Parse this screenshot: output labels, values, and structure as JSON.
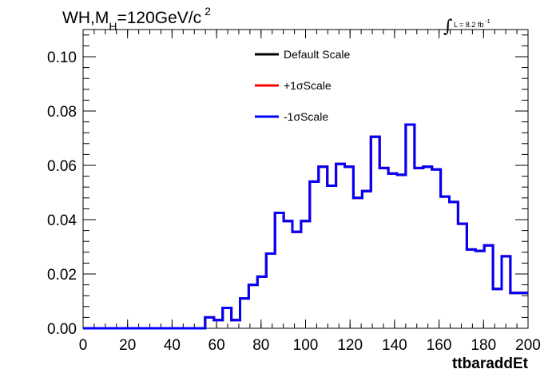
{
  "chart_data": {
    "type": "step-line",
    "title_main": "WH,M",
    "title_sub": "H",
    "title_rest": "=120GeV/c",
    "title_sup": "2",
    "lumi": {
      "symbol": "∫",
      "text": "L = 8.2 fb",
      "sup": "-1"
    },
    "xlabel": "ttbaraddEt",
    "xlim": [
      0,
      200
    ],
    "ylim": [
      0,
      0.11
    ],
    "x_ticks": [
      0,
      20,
      40,
      60,
      80,
      100,
      120,
      140,
      160,
      180,
      200
    ],
    "x_tick_labels": [
      "0",
      "20",
      "40",
      "60",
      "80",
      "100",
      "120",
      "140",
      "160",
      "180",
      "200"
    ],
    "y_ticks": [
      0,
      0.02,
      0.04,
      0.06,
      0.08,
      0.1
    ],
    "y_tick_labels": [
      "0.00",
      "0.02",
      "0.04",
      "0.06",
      "0.08",
      "0.10"
    ],
    "bin_width": 3.92,
    "bin_values": [
      0,
      0,
      0,
      0,
      0,
      0,
      0,
      0,
      0,
      0,
      0,
      0,
      0,
      0,
      0.004,
      0.003,
      0.0075,
      0.003,
      0.011,
      0.016,
      0.019,
      0.0275,
      0.0425,
      0.0395,
      0.0355,
      0.0395,
      0.054,
      0.0595,
      0.0525,
      0.0605,
      0.0595,
      0.048,
      0.0505,
      0.0705,
      0.059,
      0.057,
      0.0565,
      0.075,
      0.059,
      0.0595,
      0.0585,
      0.0485,
      0.0465,
      0.0385,
      0.029,
      0.0285,
      0.0305,
      0.0145,
      0.0265,
      0.013,
      0.013
    ],
    "series": [
      {
        "name": "Default Scale",
        "color": "#000000"
      },
      {
        "name": "+1σScale",
        "color": "#ff0000"
      },
      {
        "name": "-1σScale",
        "color": "#0000ff"
      }
    ]
  }
}
